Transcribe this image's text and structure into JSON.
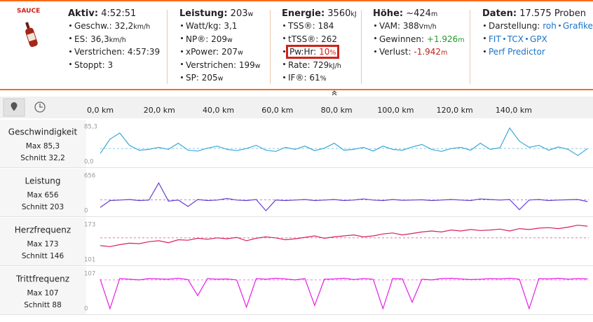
{
  "brand": "SAUCE",
  "stats": [
    {
      "title": "Aktiv:",
      "value": "4:52:51",
      "items": [
        {
          "label": "Geschw.:",
          "value": "32,2",
          "unit": "km/h"
        },
        {
          "label": "ES:",
          "value": "36,3",
          "unit": "km/h"
        },
        {
          "label": "Verstrichen:",
          "value": "4:57:39"
        },
        {
          "label": "Stoppt:",
          "value": "3"
        }
      ]
    },
    {
      "title": "Leistung:",
      "value": "203",
      "unit": "w",
      "items": [
        {
          "label": "Watt/kg:",
          "value": "3,1"
        },
        {
          "label": "NP®:",
          "value": "209",
          "unit": "w"
        },
        {
          "label": "xPower:",
          "value": "207",
          "unit": "w"
        },
        {
          "label": "Verstrichen:",
          "value": "199",
          "unit": "w"
        },
        {
          "label": "SP:",
          "value": "205",
          "unit": "w"
        }
      ]
    },
    {
      "title": "Energie:",
      "value": "3560",
      "unit": "kJ",
      "items": [
        {
          "label": "TSS®:",
          "value": "184"
        },
        {
          "label": "tTSS®:",
          "value": "262"
        },
        {
          "label": "Pw:Hr:",
          "value": "10",
          "unit": "%",
          "color": "#d0201a",
          "highlight": true
        },
        {
          "label": "Rate:",
          "value": "729",
          "unit": "kJ/h"
        },
        {
          "label": "IF®:",
          "value": "61",
          "unit": "%"
        }
      ]
    },
    {
      "title": "Höhe:",
      "value": "~424",
      "unit": "m",
      "items": [
        {
          "label": "VAM:",
          "value": "388",
          "unit": "Vm/h"
        },
        {
          "label": "Gewinnen:",
          "value": "+1.926",
          "unit": "m",
          "color": "#1f9a2a"
        },
        {
          "label": "Verlust:",
          "value": "-1.942",
          "unit": "m",
          "color": "#c0201a"
        }
      ]
    },
    {
      "title": "Daten:",
      "value": "17.575 Proben",
      "items": [
        {
          "label": "Darstellung:",
          "links": [
            "roh",
            "Grafiken"
          ]
        },
        {
          "links": [
            "FIT",
            "TCX",
            "GPX"
          ]
        },
        {
          "links": [
            "Perf Predictor"
          ]
        }
      ]
    }
  ],
  "charts": {
    "xlim": [
      0,
      165.4
    ],
    "x_ticks": [
      {
        "value": 0,
        "label": "0,0 km"
      },
      {
        "value": 20,
        "label": "20,0 km"
      },
      {
        "value": 40,
        "label": "40,0 km"
      },
      {
        "value": 60,
        "label": "60,0 km"
      },
      {
        "value": 80,
        "label": "80,0 km"
      },
      {
        "value": 100,
        "label": "100,0 km"
      },
      {
        "value": 120,
        "label": "120,0 km"
      },
      {
        "value": 140,
        "label": "140,0 km"
      }
    ],
    "x": [
      0,
      3.3,
      6.6,
      9.9,
      13.2,
      16.5,
      19.8,
      23.1,
      26.4,
      29.7,
      33,
      36.3,
      39.6,
      42.9,
      46.2,
      49.5,
      52.8,
      56.1,
      59.4,
      62.7,
      66,
      69.3,
      72.6,
      75.9,
      79.2,
      82.5,
      85.8,
      89.1,
      92.4,
      95.7,
      99,
      102.3,
      105.6,
      108.9,
      112.2,
      115.5,
      118.8,
      122.1,
      125.4,
      128.7,
      132,
      135.3,
      138.6,
      141.9,
      145.2,
      148.5,
      151.8,
      155.1,
      158.4,
      161.7,
      165
    ],
    "panels": [
      {
        "name": "Geschwindigkeit",
        "max": "Max 85,3",
        "avg_label": "Schnitt 32,2",
        "avg": 32.2,
        "color": "#3ba6d6",
        "ylim": [
          0,
          85.3
        ],
        "yticks": [
          {
            "value": 0,
            "label": "0,0"
          },
          {
            "value": 85.3,
            "label": "85,3"
          }
        ],
        "values": [
          20,
          55,
          70,
          40,
          28,
          30,
          35,
          30,
          45,
          28,
          26,
          33,
          38,
          30,
          27,
          32,
          40,
          28,
          25,
          35,
          30,
          38,
          27,
          33,
          45,
          28,
          30,
          35,
          26,
          38,
          30,
          28,
          36,
          42,
          30,
          25,
          32,
          35,
          28,
          45,
          30,
          34,
          82,
          50,
          35,
          40,
          28,
          36,
          30,
          15,
          32
        ]
      },
      {
        "name": "Leistung",
        "max": "Max 656",
        "avg_label": "Schnitt 203",
        "avg": 203,
        "color": "#6a3fd0",
        "ylim": [
          0,
          656
        ],
        "yticks": [
          0,
          656
        ],
        "values": [
          60,
          190,
          200,
          210,
          190,
          200,
          520,
          180,
          200,
          80,
          210,
          190,
          200,
          230,
          200,
          190,
          210,
          0,
          200,
          190,
          200,
          210,
          190,
          200,
          210,
          190,
          200,
          220,
          200,
          190,
          210,
          195,
          200,
          205,
          190,
          200,
          210,
          200,
          190,
          220,
          210,
          200,
          210,
          20,
          200,
          210,
          190,
          200,
          205,
          210,
          170
        ]
      },
      {
        "name": "Herzfrequenz",
        "max": "Max 173",
        "avg_label": "Schnitt 146",
        "avg": 146,
        "color": "#d9205d",
        "ylim": [
          101,
          173
        ],
        "yticks": [
          101,
          173
        ],
        "values": [
          130,
          128,
          132,
          135,
          134,
          138,
          140,
          136,
          142,
          141,
          145,
          143,
          146,
          144,
          147,
          140,
          145,
          148,
          146,
          142,
          144,
          147,
          150,
          145,
          148,
          150,
          152,
          148,
          150,
          154,
          156,
          152,
          155,
          158,
          160,
          158,
          162,
          160,
          163,
          161,
          162,
          164,
          160,
          165,
          163,
          166,
          167,
          165,
          168,
          172,
          170
        ]
      },
      {
        "name": "Trittfrequenz",
        "max": "Max 107",
        "avg_label": "Schnitt 88",
        "avg": 88,
        "color": "#e61ce6",
        "ylim": [
          0,
          107
        ],
        "yticks": [
          0,
          107
        ],
        "values": [
          90,
          0,
          92,
          90,
          88,
          92,
          91,
          90,
          93,
          89,
          40,
          92,
          90,
          91,
          88,
          5,
          92,
          90,
          93,
          91,
          88,
          92,
          10,
          90,
          91,
          93,
          89,
          92,
          90,
          0,
          92,
          91,
          20,
          90,
          88,
          92,
          93,
          91,
          89,
          90,
          92,
          91,
          93,
          90,
          0,
          92,
          91,
          93,
          90,
          92,
          91
        ]
      }
    ]
  }
}
